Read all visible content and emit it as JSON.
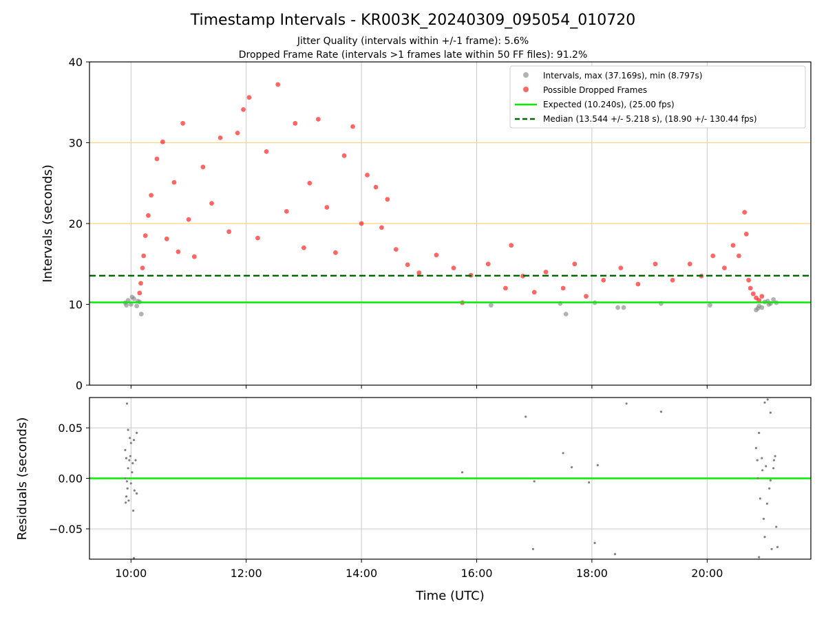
{
  "chart_data": [
    {
      "type": "scatter",
      "title": "Timestamp Intervals - KR003K_20240309_095054_010720",
      "subtitle_lines": [
        "Jitter Quality (intervals within +/-1 frame): 5.6%",
        "Dropped Frame Rate (intervals >1 frames late within 50 FF files): 91.2%"
      ],
      "xlabel": "",
      "ylabel": "Intervals (seconds)",
      "x_unit": "hours_utc",
      "xlim": [
        9.28,
        21.8
      ],
      "ylim": [
        0,
        40
      ],
      "yticks": [
        0,
        10,
        20,
        30,
        40
      ],
      "xticks": [
        10,
        12,
        14,
        16,
        18,
        20
      ],
      "xtick_labels": [
        "10:00",
        "12:00",
        "14:00",
        "16:00",
        "18:00",
        "20:00"
      ],
      "grid": "vertical",
      "legend_position": "upper right",
      "hlines_reference": [
        20,
        30
      ],
      "expected_interval": 10.24,
      "median_interval": 13.544,
      "series": [
        {
          "name": "Intervals, max (37.169s), min (8.797s)",
          "color": "#808080",
          "points": [
            [
              9.9,
              10.2
            ],
            [
              9.95,
              10.5
            ],
            [
              10.0,
              10.0
            ],
            [
              10.05,
              10.7
            ],
            [
              10.1,
              9.8
            ],
            [
              10.15,
              10.3
            ],
            [
              10.18,
              8.8
            ],
            [
              9.92,
              9.9
            ],
            [
              10.02,
              10.9
            ],
            [
              10.12,
              10.4
            ],
            [
              16.25,
              9.9
            ],
            [
              17.55,
              8.8
            ],
            [
              17.45,
              10.1
            ],
            [
              18.05,
              10.2
            ],
            [
              18.45,
              9.6
            ],
            [
              18.55,
              9.6
            ],
            [
              20.05,
              9.9
            ],
            [
              19.2,
              10.1
            ],
            [
              20.85,
              9.3
            ],
            [
              20.9,
              9.8
            ],
            [
              20.95,
              9.6
            ],
            [
              21.0,
              10.3
            ],
            [
              21.05,
              10.4
            ],
            [
              21.1,
              10.1
            ],
            [
              21.15,
              10.6
            ],
            [
              21.2,
              10.2
            ],
            [
              20.88,
              9.5
            ],
            [
              21.07,
              10.0
            ]
          ]
        },
        {
          "name": "Possible Dropped Frames",
          "color": "#ff0000",
          "points": [
            [
              10.15,
              11.4
            ],
            [
              10.17,
              12.6
            ],
            [
              10.2,
              14.5
            ],
            [
              10.22,
              16.0
            ],
            [
              10.25,
              18.5
            ],
            [
              10.3,
              21.0
            ],
            [
              10.35,
              23.5
            ],
            [
              10.45,
              28.0
            ],
            [
              10.55,
              30.1
            ],
            [
              10.62,
              18.1
            ],
            [
              10.75,
              25.1
            ],
            [
              10.82,
              16.5
            ],
            [
              10.9,
              32.4
            ],
            [
              11.0,
              20.5
            ],
            [
              11.1,
              15.9
            ],
            [
              11.25,
              27.0
            ],
            [
              11.4,
              22.5
            ],
            [
              11.55,
              30.6
            ],
            [
              11.7,
              19.0
            ],
            [
              11.85,
              31.2
            ],
            [
              11.95,
              34.1
            ],
            [
              12.05,
              35.6
            ],
            [
              12.2,
              18.2
            ],
            [
              12.35,
              28.9
            ],
            [
              12.55,
              37.2
            ],
            [
              12.7,
              21.5
            ],
            [
              12.85,
              32.4
            ],
            [
              13.0,
              17.0
            ],
            [
              13.1,
              25.0
            ],
            [
              13.25,
              32.9
            ],
            [
              13.4,
              22.0
            ],
            [
              13.55,
              16.4
            ],
            [
              13.7,
              28.4
            ],
            [
              13.85,
              32.0
            ],
            [
              14.0,
              20.0
            ],
            [
              14.1,
              26.0
            ],
            [
              14.25,
              24.5
            ],
            [
              14.35,
              19.5
            ],
            [
              14.45,
              23.0
            ],
            [
              14.6,
              16.8
            ],
            [
              14.8,
              14.9
            ],
            [
              15.0,
              13.9
            ],
            [
              15.3,
              16.1
            ],
            [
              15.6,
              14.5
            ],
            [
              15.75,
              10.2
            ],
            [
              15.9,
              13.6
            ],
            [
              16.2,
              15.0
            ],
            [
              16.5,
              12.0
            ],
            [
              16.6,
              17.3
            ],
            [
              16.8,
              13.5
            ],
            [
              17.0,
              11.5
            ],
            [
              17.2,
              14.0
            ],
            [
              17.5,
              12.0
            ],
            [
              17.7,
              15.0
            ],
            [
              17.9,
              11.0
            ],
            [
              18.2,
              13.0
            ],
            [
              18.5,
              14.5
            ],
            [
              18.8,
              12.5
            ],
            [
              19.1,
              15.0
            ],
            [
              19.4,
              13.0
            ],
            [
              19.7,
              15.0
            ],
            [
              19.9,
              13.5
            ],
            [
              20.1,
              16.0
            ],
            [
              20.3,
              14.5
            ],
            [
              20.45,
              17.3
            ],
            [
              20.55,
              16.0
            ],
            [
              20.65,
              21.4
            ],
            [
              20.68,
              18.7
            ],
            [
              20.72,
              13.0
            ],
            [
              20.75,
              12.0
            ],
            [
              20.8,
              11.3
            ],
            [
              20.85,
              10.8
            ],
            [
              20.9,
              10.5
            ],
            [
              20.95,
              11.0
            ]
          ]
        }
      ],
      "lines": [
        {
          "name": "Expected (10.240s), (25.00 fps)",
          "color": "#00ee00",
          "style": "solid",
          "y": 10.24
        },
        {
          "name": "Median (13.544 +/- 5.218 s), (18.90 +/- 130.44 fps)",
          "color": "#006400",
          "style": "dashed",
          "y": 13.544
        }
      ]
    },
    {
      "type": "scatter",
      "xlabel": "Time (UTC)",
      "ylabel": "Residuals (seconds)",
      "xlim": [
        9.28,
        21.8
      ],
      "ylim": [
        -0.08,
        0.08
      ],
      "yticks": [
        -0.05,
        0.0,
        0.05
      ],
      "ytick_labels": [
        "−0.05",
        "0.00",
        "0.05"
      ],
      "xticks": [
        10,
        12,
        14,
        16,
        18,
        20
      ],
      "xtick_labels": [
        "10:00",
        "12:00",
        "14:00",
        "16:00",
        "18:00",
        "20:00"
      ],
      "grid": "both",
      "zero_line_color": "#00ee00",
      "series": [
        {
          "name": "",
          "color": "#808080",
          "points": [
            [
              9.93,
              0.074
            ],
            [
              9.95,
              0.048
            ],
            [
              9.98,
              0.04
            ],
            [
              10.0,
              0.035
            ],
            [
              10.05,
              0.038
            ],
            [
              10.1,
              0.045
            ],
            [
              9.9,
              0.028
            ],
            [
              9.92,
              0.02
            ],
            [
              9.97,
              0.018
            ],
            [
              10.03,
              0.015
            ],
            [
              9.95,
              0.01
            ],
            [
              10.02,
              0.006
            ],
            [
              9.9,
              0.0
            ],
            [
              10.0,
              -0.005
            ],
            [
              9.94,
              -0.01
            ],
            [
              10.06,
              -0.012
            ],
            [
              10.1,
              -0.015
            ],
            [
              9.92,
              -0.018
            ],
            [
              9.96,
              -0.022
            ],
            [
              9.91,
              -0.024
            ],
            [
              10.04,
              -0.032
            ],
            [
              10.05,
              -0.079
            ],
            [
              9.99,
              0.022
            ],
            [
              9.93,
              -0.003
            ],
            [
              10.08,
              0.018
            ],
            [
              15.75,
              0.006
            ],
            [
              16.85,
              0.061
            ],
            [
              17.0,
              -0.003
            ],
            [
              16.98,
              -0.07
            ],
            [
              17.5,
              0.025
            ],
            [
              17.65,
              0.011
            ],
            [
              17.95,
              -0.004
            ],
            [
              18.05,
              -0.064
            ],
            [
              18.1,
              0.013
            ],
            [
              18.4,
              -0.075
            ],
            [
              18.6,
              0.074
            ],
            [
              19.2,
              0.066
            ],
            [
              20.85,
              0.03
            ],
            [
              20.9,
              0.045
            ],
            [
              20.95,
              0.02
            ],
            [
              21.0,
              0.075
            ],
            [
              21.05,
              0.078
            ],
            [
              21.1,
              0.065
            ],
            [
              21.15,
              0.01
            ],
            [
              21.2,
              -0.048
            ],
            [
              21.22,
              -0.068
            ],
            [
              21.12,
              -0.07
            ],
            [
              20.88,
              0.0
            ],
            [
              20.92,
              -0.02
            ],
            [
              20.98,
              -0.04
            ],
            [
              21.02,
              0.012
            ],
            [
              21.08,
              -0.01
            ],
            [
              21.16,
              0.018
            ],
            [
              20.9,
              -0.078
            ],
            [
              21.0,
              -0.058
            ],
            [
              20.96,
              0.008
            ],
            [
              21.04,
              -0.025
            ],
            [
              21.18,
              0.022
            ],
            [
              20.87,
              0.018
            ],
            [
              21.1,
              -0.002
            ]
          ]
        }
      ]
    }
  ]
}
